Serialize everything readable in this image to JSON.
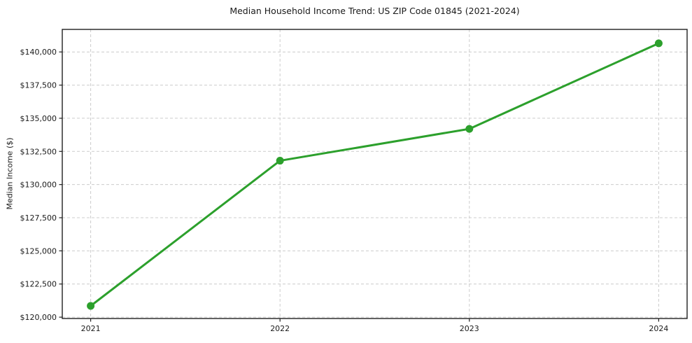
{
  "chart_data": {
    "type": "line",
    "title": "Median Household Income Trend: US ZIP Code 01845 (2021-2024)",
    "xlabel": "",
    "ylabel": "Median Income ($)",
    "x": [
      2021,
      2022,
      2023,
      2024
    ],
    "x_tick_labels": [
      "2021",
      "2022",
      "2023",
      "2024"
    ],
    "values": [
      120850,
      131800,
      134200,
      140650
    ],
    "y_ticks": [
      120000,
      122500,
      125000,
      127500,
      130000,
      132500,
      135000,
      137500,
      140000
    ],
    "y_tick_labels": [
      "$120,000",
      "$122,500",
      "$125,000",
      "$127,500",
      "$130,000",
      "$132,500",
      "$135,000",
      "$137,500",
      "$140,000"
    ],
    "xlim": [
      2020.85,
      2024.15
    ],
    "ylim": [
      119900,
      141700
    ],
    "grid": true,
    "grid_style": "dashed",
    "legend": "none",
    "marker": "circle"
  },
  "colors": {
    "line": "#2ca02c",
    "marker": "#2ca02c",
    "grid": "#cccccc",
    "axis": "#1f1f1f",
    "text": "#1a1a1a",
    "background": "#ffffff"
  }
}
